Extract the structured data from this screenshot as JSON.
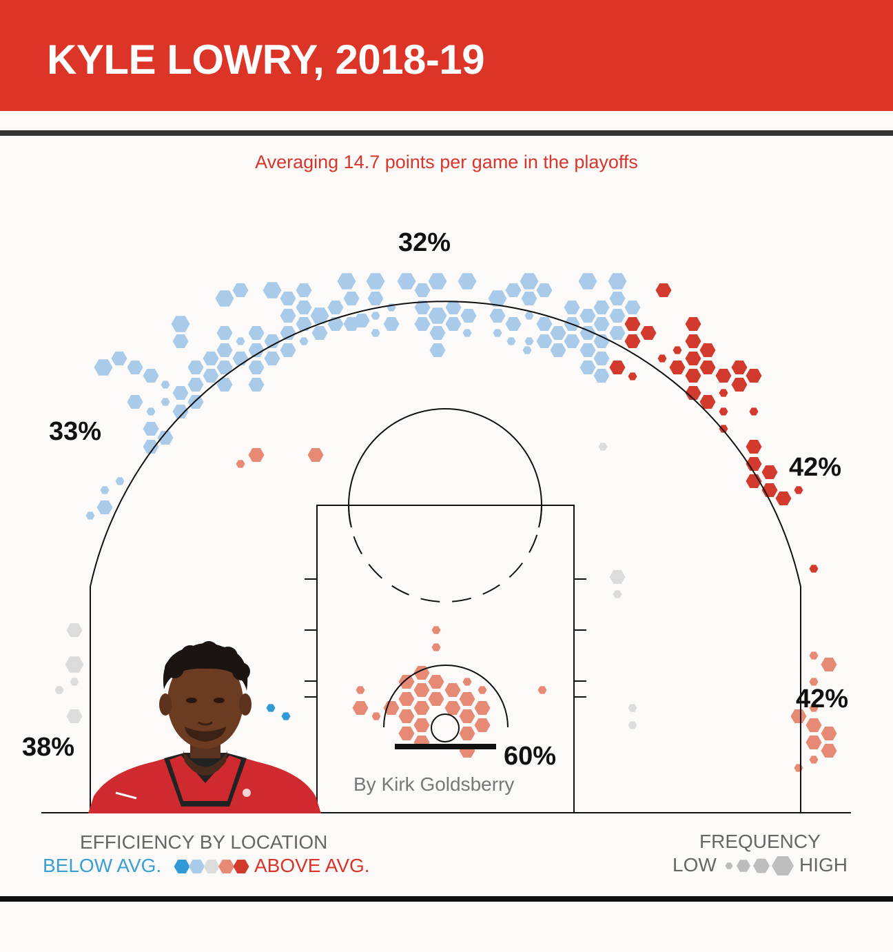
{
  "header": {
    "title": "KYLE LOWRY, 2018-19"
  },
  "subtitle": "Averaging 14.7 points per game in the playoffs",
  "byline": "By Kirk Goldsberry",
  "colors": {
    "banner": "#dc3427",
    "below_strong": "#2f9ad6",
    "below": "#a9cbe9",
    "average": "#dcdcdc",
    "above": "#e68a76",
    "above_strong": "#d33a2e"
  },
  "legend": {
    "efficiency": {
      "title": "EFFICIENCY BY LOCATION",
      "low_label": "BELOW AVG.",
      "high_label": "ABOVE AVG."
    },
    "frequency": {
      "title": "FREQUENCY",
      "low_label": "LOW",
      "high_label": "HIGH"
    }
  },
  "chart_data": {
    "type": "heatmap",
    "title": "KYLE LOWRY, 2018-19",
    "zones": [
      {
        "zone": "above-the-break-three-center",
        "fg_pct": "32%"
      },
      {
        "zone": "above-the-break-three-left",
        "fg_pct": "33%"
      },
      {
        "zone": "above-the-break-three-right",
        "fg_pct": "42%"
      },
      {
        "zone": "left-corner-three",
        "fg_pct": "38%"
      },
      {
        "zone": "right-corner-three",
        "fg_pct": "42%"
      },
      {
        "zone": "restricted-area",
        "fg_pct": "60%"
      }
    ],
    "efficiency_scale": [
      "well-below-avg",
      "below-avg",
      "avg",
      "above-avg",
      "well-above-avg"
    ],
    "frequency_scale": [
      "low",
      "medium",
      "high"
    ]
  }
}
